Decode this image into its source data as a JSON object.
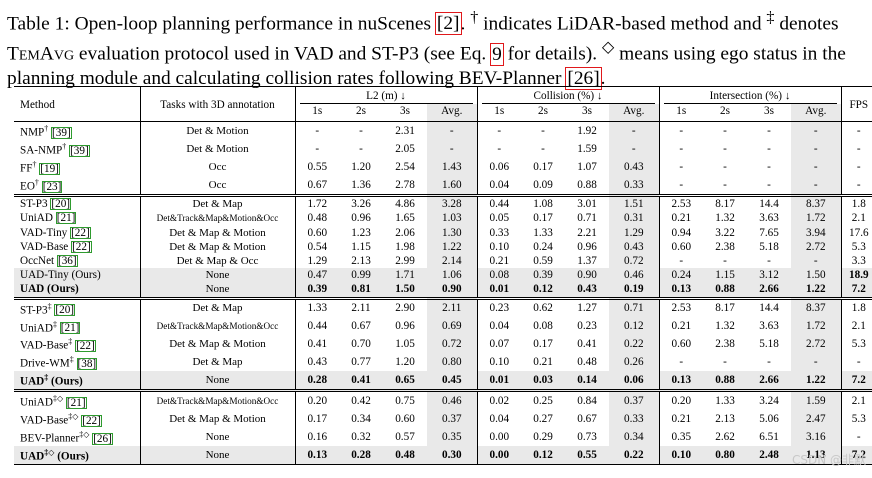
{
  "caption": {
    "p1": "Table 1: Open-loop planning performance in nuScenes ",
    "ref1": "[2]",
    "p2": ". ",
    "dagger": "†",
    "p3": " indicates LiDAR-based method and ",
    "ddagger": "‡",
    "p4": " denotes ",
    "temavg": "TemAvg",
    "p5": " evaluation protocol used in VAD and ST-P3 (see Eq. ",
    "ref2": "9",
    "p6": " for details). ",
    "diamond": "◇",
    "p7": " means using ego status in the planning module and calculating collision rates following BEV-Planner ",
    "ref3": "[26]",
    "p8": "."
  },
  "headers": {
    "method": "Method",
    "tasks": "Tasks with 3D annotation",
    "l2": "L2 (m) ↓",
    "collision": "Collision (%) ↓",
    "intersection": "Intersection (%) ↓",
    "fps": "FPS",
    "sub": [
      "1s",
      "2s",
      "3s",
      "Avg.",
      "1s",
      "2s",
      "3s",
      "Avg.",
      "1s",
      "2s",
      "3s",
      "Avg."
    ]
  },
  "groups": [
    {
      "rows": [
        {
          "name": "NMP",
          "sup": "†",
          "cite": "[39]",
          "tasks": "Det & Motion",
          "small": false,
          "vals": [
            "-",
            "-",
            "2.31",
            "-",
            "-",
            "-",
            "1.92",
            "-",
            "-",
            "-",
            "-",
            "-"
          ],
          "fps": "-",
          "bold": false,
          "grey": false
        },
        {
          "name": "SA-NMP",
          "sup": "†",
          "cite": "[39]",
          "tasks": "Det & Motion",
          "small": false,
          "vals": [
            "-",
            "-",
            "2.05",
            "-",
            "-",
            "-",
            "1.59",
            "-",
            "-",
            "-",
            "-",
            "-"
          ],
          "fps": "-",
          "bold": false,
          "grey": false
        },
        {
          "name": "FF",
          "sup": "†",
          "cite": "[19]",
          "tasks": "Occ",
          "small": false,
          "vals": [
            "0.55",
            "1.20",
            "2.54",
            "1.43",
            "0.06",
            "0.17",
            "1.07",
            "0.43",
            "-",
            "-",
            "-",
            "-"
          ],
          "fps": "-",
          "bold": false,
          "grey": false
        },
        {
          "name": "EO",
          "sup": "†",
          "cite": "[23]",
          "tasks": "Occ",
          "small": false,
          "vals": [
            "0.67",
            "1.36",
            "2.78",
            "1.60",
            "0.04",
            "0.09",
            "0.88",
            "0.33",
            "-",
            "-",
            "-",
            "-"
          ],
          "fps": "-",
          "bold": false,
          "grey": false
        }
      ]
    },
    {
      "rows": [
        {
          "name": "ST-P3",
          "sup": "",
          "cite": "[20]",
          "tasks": "Det & Map",
          "small": false,
          "vals": [
            "1.72",
            "3.26",
            "4.86",
            "3.28",
            "0.44",
            "1.08",
            "3.01",
            "1.51",
            "2.53",
            "8.17",
            "14.4",
            "8.37"
          ],
          "fps": "1.8",
          "bold": false,
          "grey": false
        },
        {
          "name": "UniAD",
          "sup": "",
          "cite": "[21]",
          "tasks": "Det&Track&Map&Motion&Occ",
          "small": true,
          "vals": [
            "0.48",
            "0.96",
            "1.65",
            "1.03",
            "0.05",
            "0.17",
            "0.71",
            "0.31",
            "0.21",
            "1.32",
            "3.63",
            "1.72"
          ],
          "fps": "2.1",
          "bold": false,
          "grey": false
        },
        {
          "name": "VAD-Tiny",
          "sup": "",
          "cite": "[22]",
          "tasks": "Det & Map & Motion",
          "small": false,
          "vals": [
            "0.60",
            "1.23",
            "2.06",
            "1.30",
            "0.33",
            "1.33",
            "2.21",
            "1.29",
            "0.94",
            "3.22",
            "7.65",
            "3.94"
          ],
          "fps": "17.6",
          "bold": false,
          "grey": false
        },
        {
          "name": "VAD-Base",
          "sup": "",
          "cite": "[22]",
          "tasks": "Det & Map & Motion",
          "small": false,
          "vals": [
            "0.54",
            "1.15",
            "1.98",
            "1.22",
            "0.10",
            "0.24",
            "0.96",
            "0.43",
            "0.60",
            "2.38",
            "5.18",
            "2.72"
          ],
          "fps": "5.3",
          "bold": false,
          "grey": false
        },
        {
          "name": "OccNet",
          "sup": "",
          "cite": "[36]",
          "tasks": "Det & Map & Occ",
          "small": false,
          "vals": [
            "1.29",
            "2.13",
            "2.99",
            "2.14",
            "0.21",
            "0.59",
            "1.37",
            "0.72",
            "-",
            "-",
            "-",
            "-"
          ],
          "fps": "3.3",
          "bold": false,
          "grey": false
        },
        {
          "name": "UAD-Tiny (Ours)",
          "sup": "",
          "cite": "",
          "tasks": "None",
          "small": false,
          "vals": [
            "0.47",
            "0.99",
            "1.71",
            "1.06",
            "0.08",
            "0.39",
            "0.90",
            "0.46",
            "0.24",
            "1.15",
            "3.12",
            "1.50"
          ],
          "fps": "18.9",
          "bold": false,
          "grey": true,
          "fpsbold": true
        },
        {
          "name": "UAD (Ours)",
          "sup": "",
          "cite": "",
          "tasks": "None",
          "small": false,
          "vals": [
            "0.39",
            "0.81",
            "1.50",
            "0.90",
            "0.01",
            "0.12",
            "0.43",
            "0.19",
            "0.13",
            "0.88",
            "2.66",
            "1.22"
          ],
          "fps": "7.2",
          "bold": true,
          "grey": true,
          "fpsbold": false
        }
      ]
    },
    {
      "rows": [
        {
          "name": "ST-P3",
          "sup": "‡",
          "cite": "[20]",
          "tasks": "Det & Map",
          "small": false,
          "vals": [
            "1.33",
            "2.11",
            "2.90",
            "2.11",
            "0.23",
            "0.62",
            "1.27",
            "0.71",
            "2.53",
            "8.17",
            "14.4",
            "8.37"
          ],
          "fps": "1.8",
          "bold": false,
          "grey": false
        },
        {
          "name": "UniAD",
          "sup": "‡",
          "cite": "[21]",
          "tasks": "Det&Track&Map&Motion&Occ",
          "small": true,
          "vals": [
            "0.44",
            "0.67",
            "0.96",
            "0.69",
            "0.04",
            "0.08",
            "0.23",
            "0.12",
            "0.21",
            "1.32",
            "3.63",
            "1.72"
          ],
          "fps": "2.1",
          "bold": false,
          "grey": false
        },
        {
          "name": "VAD-Base",
          "sup": "‡",
          "cite": "[22]",
          "tasks": "Det & Map & Motion",
          "small": false,
          "vals": [
            "0.41",
            "0.70",
            "1.05",
            "0.72",
            "0.07",
            "0.17",
            "0.41",
            "0.22",
            "0.60",
            "2.38",
            "5.18",
            "2.72"
          ],
          "fps": "5.3",
          "bold": false,
          "grey": false
        },
        {
          "name": "Drive-WM",
          "sup": "‡",
          "cite": "[38]",
          "tasks": "Det & Map",
          "small": false,
          "vals": [
            "0.43",
            "0.77",
            "1.20",
            "0.80",
            "0.10",
            "0.21",
            "0.48",
            "0.26",
            "-",
            "-",
            "-",
            "-"
          ],
          "fps": "-",
          "bold": false,
          "grey": false
        },
        {
          "name": "UAD",
          "sup": "‡",
          "cite": "",
          "suffix": " (Ours)",
          "tasks": "None",
          "small": false,
          "vals": [
            "0.28",
            "0.41",
            "0.65",
            "0.45",
            "0.01",
            "0.03",
            "0.14",
            "0.06",
            "0.13",
            "0.88",
            "2.66",
            "1.22"
          ],
          "fps": "7.2",
          "bold": true,
          "grey": true,
          "fpsbold": false
        }
      ]
    },
    {
      "rows": [
        {
          "name": "UniAD",
          "sup": "‡◇",
          "cite": "[21]",
          "tasks": "Det&Track&Map&Motion&Occ",
          "small": true,
          "vals": [
            "0.20",
            "0.42",
            "0.75",
            "0.46",
            "0.02",
            "0.25",
            "0.84",
            "0.37",
            "0.20",
            "1.33",
            "3.24",
            "1.59"
          ],
          "fps": "2.1",
          "bold": false,
          "grey": false
        },
        {
          "name": "VAD-Base",
          "sup": "‡◇",
          "cite": "[22]",
          "tasks": "Det & Map & Motion",
          "small": false,
          "vals": [
            "0.17",
            "0.34",
            "0.60",
            "0.37",
            "0.04",
            "0.27",
            "0.67",
            "0.33",
            "0.21",
            "2.13",
            "5.06",
            "2.47"
          ],
          "fps": "5.3",
          "bold": false,
          "grey": false
        },
        {
          "name": "BEV-Planner",
          "sup": "‡◇",
          "cite": "[26]",
          "tasks": "None",
          "small": false,
          "vals": [
            "0.16",
            "0.32",
            "0.57",
            "0.35",
            "0.00",
            "0.29",
            "0.73",
            "0.34",
            "0.35",
            "2.62",
            "6.51",
            "3.16"
          ],
          "fps": "-",
          "bold": false,
          "grey": false
        },
        {
          "name": "UAD",
          "sup": "‡◇",
          "cite": "",
          "suffix": " (Ours)",
          "tasks": "None",
          "small": false,
          "vals": [
            "0.13",
            "0.28",
            "0.48",
            "0.30",
            "0.00",
            "0.12",
            "0.55",
            "0.22",
            "0.10",
            "0.80",
            "2.48",
            "1.13"
          ],
          "fps": "7.2",
          "bold": true,
          "grey": true,
          "fpsbold": false
        }
      ]
    }
  ],
  "watermark": "CSDN @非默"
}
